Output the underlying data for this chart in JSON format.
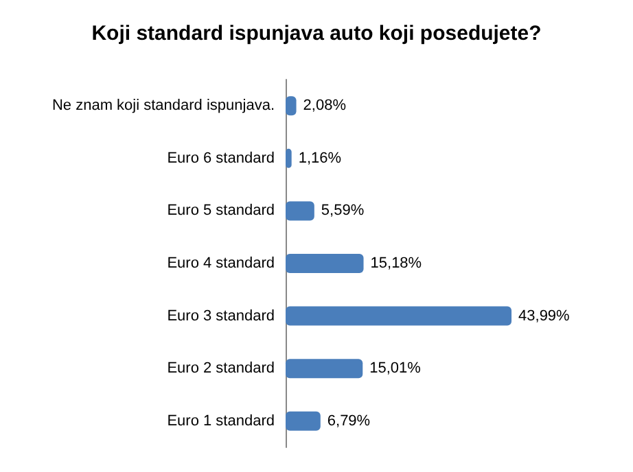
{
  "chart_data": {
    "type": "bar",
    "title": "Koji standard ispunjava auto koji posedujete?",
    "orientation": "horizontal",
    "categories": [
      "Ne znam koji standard ispunjava.",
      "Euro 6 standard",
      "Euro 5 standard",
      "Euro 4 standard",
      "Euro 3 standard",
      "Euro 2 standard",
      "Euro 1 standard"
    ],
    "values": [
      2.08,
      1.16,
      5.59,
      15.18,
      43.99,
      15.01,
      6.79
    ],
    "value_labels": [
      "2,08%",
      "1,16%",
      "5,59%",
      "15,18%",
      "43,99%",
      "15,01%",
      "6,79%"
    ],
    "color": "#4a7ebb"
  }
}
